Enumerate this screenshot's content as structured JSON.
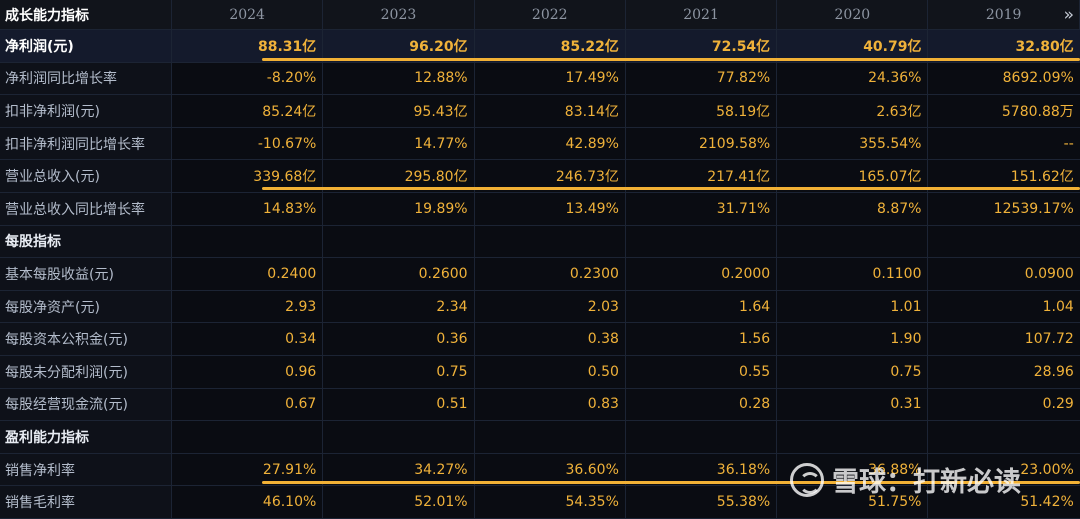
{
  "header": {
    "title": "成长能力指标",
    "years": [
      "2024",
      "2023",
      "2022",
      "2021",
      "2020",
      "2019"
    ]
  },
  "rows": [
    {
      "label": "净利润(元)",
      "values": [
        "88.31亿",
        "96.20亿",
        "85.22亿",
        "72.54亿",
        "40.79亿",
        "32.80亿"
      ],
      "highlight": true
    },
    {
      "label": "净利润同比增长率",
      "values": [
        "-8.20%",
        "12.88%",
        "17.49%",
        "77.82%",
        "24.36%",
        "8692.09%"
      ]
    },
    {
      "label": "扣非净利润(元)",
      "values": [
        "85.24亿",
        "95.43亿",
        "83.14亿",
        "58.19亿",
        "2.63亿",
        "5780.88万"
      ]
    },
    {
      "label": "扣非净利润同比增长率",
      "values": [
        "-10.67%",
        "14.77%",
        "42.89%",
        "2109.58%",
        "355.54%",
        "--"
      ]
    },
    {
      "label": "营业总收入(元)",
      "values": [
        "339.68亿",
        "295.80亿",
        "246.73亿",
        "217.41亿",
        "165.07亿",
        "151.62亿"
      ]
    },
    {
      "label": "营业总收入同比增长率",
      "values": [
        "14.83%",
        "19.89%",
        "13.49%",
        "31.71%",
        "8.87%",
        "12539.17%"
      ]
    },
    {
      "label": "每股指标",
      "values": [
        "",
        "",
        "",
        "",
        "",
        ""
      ],
      "section": true
    },
    {
      "label": "基本每股收益(元)",
      "values": [
        "0.2400",
        "0.2600",
        "0.2300",
        "0.2000",
        "0.1100",
        "0.0900"
      ]
    },
    {
      "label": "每股净资产(元)",
      "values": [
        "2.93",
        "2.34",
        "2.03",
        "1.64",
        "1.01",
        "1.04"
      ]
    },
    {
      "label": "每股资本公积金(元)",
      "values": [
        "0.34",
        "0.36",
        "0.38",
        "1.56",
        "1.90",
        "107.72"
      ]
    },
    {
      "label": "每股未分配利润(元)",
      "values": [
        "0.96",
        "0.75",
        "0.50",
        "0.55",
        "0.75",
        "28.96"
      ]
    },
    {
      "label": "每股经营现金流(元)",
      "values": [
        "0.67",
        "0.51",
        "0.83",
        "0.28",
        "0.31",
        "0.29"
      ]
    },
    {
      "label": "盈利能力指标",
      "values": [
        "",
        "",
        "",
        "",
        "",
        ""
      ],
      "section": true
    },
    {
      "label": "销售净利率",
      "values": [
        "27.91%",
        "34.27%",
        "36.60%",
        "36.18%",
        "36.88%",
        "23.00%"
      ]
    },
    {
      "label": "销售毛利率",
      "values": [
        "46.10%",
        "52.01%",
        "54.35%",
        "55.38%",
        "51.75%",
        "51.42%"
      ]
    }
  ],
  "watermark": "雪球：打新必读",
  "icons": {
    "more": "double-chevron-right-icon"
  },
  "colors": {
    "value": "#f0b23a",
    "underline": "#f2b135",
    "background": "#0a0c12"
  }
}
